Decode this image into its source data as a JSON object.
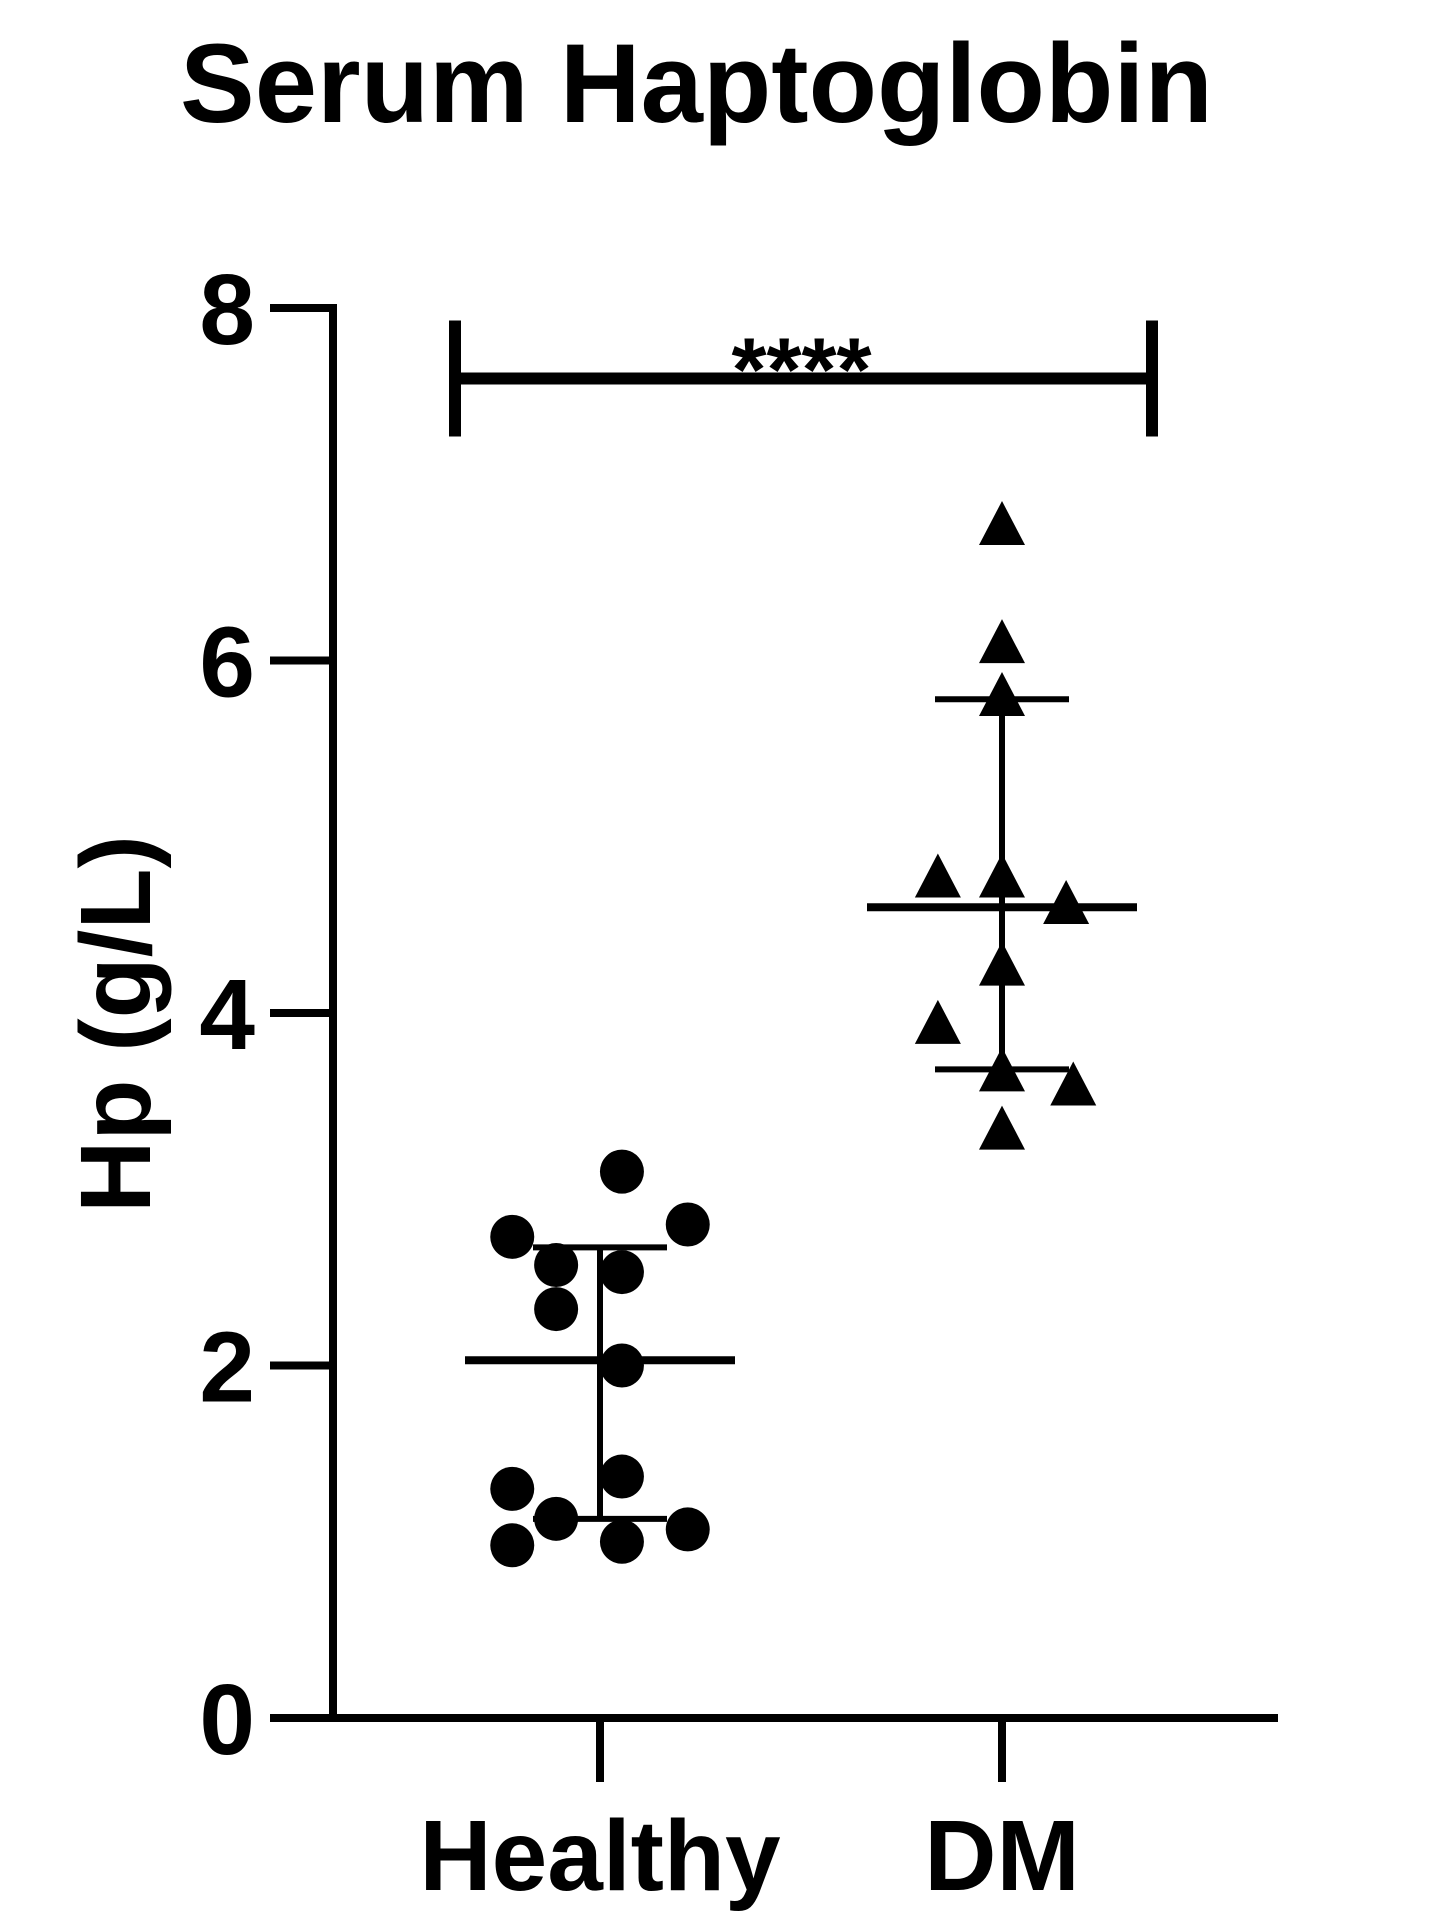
{
  "chart_data": {
    "type": "scatter",
    "title": "Serum Haptoglobin",
    "ylabel": "Hp (g/L)",
    "xlabel": "",
    "ylim": [
      0,
      8
    ],
    "yticks": [
      "0",
      "2",
      "4",
      "6",
      "8"
    ],
    "categories": [
      "Healthy",
      "DM"
    ],
    "grid": false,
    "series": [
      {
        "category": "Healthy",
        "marker": "circle",
        "points": [
          {
            "offset": -1,
            "y": 2.73
          },
          {
            "offset": -0.5,
            "y": 2.57
          },
          {
            "offset": -0.5,
            "y": 2.32
          },
          {
            "offset": 0.25,
            "y": 3.1
          },
          {
            "offset": 0.25,
            "y": 2.53
          },
          {
            "offset": 1,
            "y": 2.8
          },
          {
            "offset": 0.25,
            "y": 2.0
          },
          {
            "offset": 0.25,
            "y": 1.37
          },
          {
            "offset": -1,
            "y": 1.3
          },
          {
            "offset": -0.5,
            "y": 1.13
          },
          {
            "offset": 0.25,
            "y": 1.0
          },
          {
            "offset": 1,
            "y": 1.07
          },
          {
            "offset": -1,
            "y": 0.98
          }
        ],
        "median": 2.03,
        "q1": 1.13,
        "q3": 2.67
      },
      {
        "category": "DM",
        "marker": "triangle",
        "points": [
          {
            "offset": 0,
            "y": 6.75
          },
          {
            "offset": 0,
            "y": 6.08
          },
          {
            "offset": 0,
            "y": 5.78
          },
          {
            "offset": -0.9,
            "y": 4.75
          },
          {
            "offset": 0,
            "y": 4.75
          },
          {
            "offset": 0.9,
            "y": 4.6
          },
          {
            "offset": 0,
            "y": 4.25
          },
          {
            "offset": -0.9,
            "y": 3.92
          },
          {
            "offset": 0,
            "y": 3.65
          },
          {
            "offset": 1,
            "y": 3.57
          },
          {
            "offset": 0,
            "y": 3.32
          }
        ],
        "median": 4.6,
        "q1": 3.68,
        "q3": 5.78
      }
    ],
    "annotations": [
      {
        "type": "significance",
        "from": "Healthy",
        "to": "DM",
        "y": 7.6,
        "label": "****"
      }
    ]
  }
}
